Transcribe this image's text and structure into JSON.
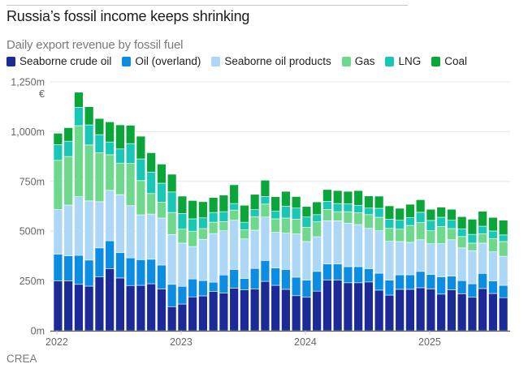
{
  "header": {
    "title": "Russia’s fossil income keeps shrinking",
    "subtitle": "Daily export revenue by fossil fuel"
  },
  "source": "CREA",
  "chart_data": {
    "type": "bar",
    "stacked": true,
    "title": "Russia’s fossil income keeps shrinking",
    "subtitle": "Daily export revenue by fossil fuel",
    "xlabel": "",
    "ylabel": "€",
    "y_unit_label": "€",
    "ylim": [
      0,
      1250
    ],
    "yticks": [
      0,
      250,
      500,
      750,
      1000,
      1250
    ],
    "ytick_labels": [
      "0m",
      "250m",
      "500m",
      "750m",
      "1,000m",
      "1,250m"
    ],
    "xtick_labels": [
      "2022",
      "2023",
      "2024",
      "2025"
    ],
    "xtick_positions_month_index": [
      0,
      12,
      24,
      36
    ],
    "grid": true,
    "legend_position": "top-left",
    "categories": [
      "2022-01",
      "2022-02",
      "2022-03",
      "2022-04",
      "2022-05",
      "2022-06",
      "2022-07",
      "2022-08",
      "2022-09",
      "2022-10",
      "2022-11",
      "2022-12",
      "2023-01",
      "2023-02",
      "2023-03",
      "2023-04",
      "2023-05",
      "2023-06",
      "2023-07",
      "2023-08",
      "2023-09",
      "2023-10",
      "2023-11",
      "2023-12",
      "2024-01",
      "2024-02",
      "2024-03",
      "2024-04",
      "2024-05",
      "2024-06",
      "2024-07",
      "2024-08",
      "2024-09",
      "2024-10",
      "2024-11",
      "2024-12",
      "2025-01",
      "2025-02",
      "2025-03",
      "2025-04",
      "2025-05",
      "2025-06",
      "2025-07",
      "2025-08"
    ],
    "series": [
      {
        "name": "Seaborne crude oil",
        "color": "#1b2a96",
        "values": [
          250,
          250,
          233,
          224,
          270,
          312,
          265,
          227,
          228,
          236,
          210,
          121,
          134,
          170,
          175,
          197,
          189,
          214,
          205,
          209,
          248,
          228,
          208,
          176,
          168,
          199,
          255,
          255,
          241,
          241,
          245,
          204,
          179,
          208,
          208,
          216,
          210,
          184,
          206,
          186,
          168,
          212,
          187,
          166
        ]
      },
      {
        "name": "Oil (overland)",
        "color": "#0a8de3",
        "values": [
          135,
          126,
          146,
          131,
          146,
          140,
          127,
          139,
          129,
          123,
          120,
          112,
          89,
          90,
          77,
          47,
          91,
          94,
          57,
          104,
          105,
          87,
          100,
          93,
          86,
          99,
          80,
          80,
          81,
          81,
          67,
          85,
          75,
          73,
          73,
          82,
          72,
          87,
          68,
          66,
          68,
          76,
          63,
          62
        ]
      },
      {
        "name": "Seaborne oil products",
        "color": "#acd7f7",
        "values": [
          224,
          255,
          294,
          297,
          232,
          253,
          292,
          262,
          225,
          227,
          236,
          250,
          217,
          163,
          207,
          244,
          222,
          247,
          199,
          192,
          218,
          179,
          182,
          217,
          194,
          174,
          217,
          217,
          218,
          211,
          202,
          213,
          195,
          167,
          163,
          159,
          155,
          166,
          183,
          164,
          166,
          152,
          146,
          146
        ]
      },
      {
        "name": "Gas",
        "color": "#6ed98d",
        "values": [
          247,
          244,
          357,
          281,
          246,
          179,
          158,
          212,
          172,
          103,
          80,
          111,
          70,
          77,
          54,
          57,
          46,
          51,
          46,
          68,
          65,
          68,
          76,
          74,
          72,
          75,
          57,
          46,
          58,
          60,
          69,
          68,
          65,
          62,
          85,
          86,
          65,
          87,
          56,
          57,
          38,
          47,
          67,
          74
        ]
      },
      {
        "name": "LNG",
        "color": "#19c7b6",
        "values": [
          79,
          77,
          92,
          101,
          91,
          64,
          71,
          100,
          109,
          108,
          95,
          103,
          79,
          62,
          54,
          49,
          50,
          33,
          38,
          35,
          38,
          38,
          60,
          56,
          51,
          36,
          41,
          41,
          40,
          37,
          33,
          45,
          46,
          45,
          40,
          52,
          52,
          46,
          42,
          39,
          44,
          38,
          38,
          33
        ]
      },
      {
        "name": "Coal",
        "color": "#0aa63a",
        "values": [
          57,
          68,
          76,
          91,
          81,
          101,
          121,
          92,
          114,
          97,
          96,
          89,
          87,
          92,
          81,
          75,
          83,
          94,
          85,
          77,
          82,
          73,
          74,
          58,
          53,
          64,
          59,
          65,
          62,
          74,
          61,
          61,
          67,
          60,
          66,
          63,
          56,
          51,
          55,
          61,
          76,
          75,
          68,
          74
        ]
      }
    ]
  }
}
